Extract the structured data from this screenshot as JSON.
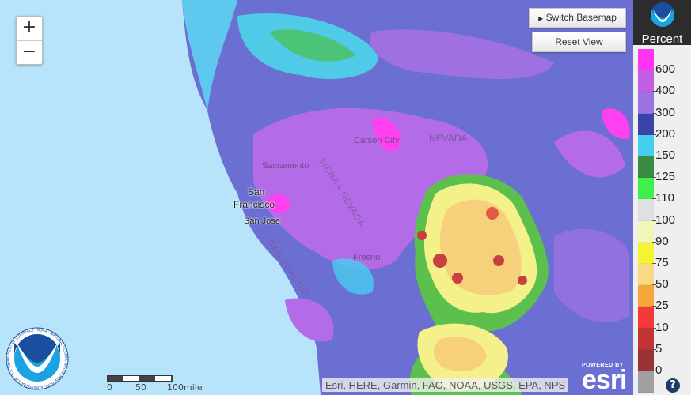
{
  "map": {
    "zoom_in": "+",
    "zoom_out": "−",
    "switch_basemap": "Switch Basemap",
    "reset_view": "Reset View",
    "labels": {
      "carson_city": "Carson City",
      "nevada": "NEVADA",
      "sacramento": "Sacramento",
      "san_francisco_1": "San",
      "san_francisco_2": "Francisco",
      "san_jose": "San Jose",
      "fresno": "Fresno",
      "sierra_nevada": "SIERRA NEVADA",
      "san_joaquin": "SAN JOAQUIN"
    },
    "scale": {
      "ticks": [
        "0",
        "50",
        "100mile"
      ]
    },
    "attribution": "Esri, HERE, Garmin, FAO, NOAA, USGS, EPA, NPS",
    "powered_by": "POWERED BY",
    "esri": "esri",
    "noaa_logo_text": "NOAA · NATIONAL OCEANIC AND ATMOSPHERIC ADMINISTRATION · U.S. DEPARTMENT OF COMMERCE"
  },
  "legend": {
    "title": "Percent",
    "noaa_badge": "NOAA",
    "help": "?",
    "bands": [
      {
        "color": "#ff33f2"
      },
      {
        "color": "#c25fe3"
      },
      {
        "color": "#9b72e3"
      },
      {
        "color": "#3a44a6"
      },
      {
        "color": "#47cdf0"
      },
      {
        "color": "#3a8a42"
      },
      {
        "color": "#3ff048"
      },
      {
        "color": "#e0e0e0"
      },
      {
        "color": "#f1f5b5"
      },
      {
        "color": "#f4f430"
      },
      {
        "color": "#f8d985"
      },
      {
        "color": "#f5a63a"
      },
      {
        "color": "#f53838"
      },
      {
        "color": "#c03434"
      },
      {
        "color": "#993333"
      },
      {
        "color": "#a0a0a0"
      }
    ],
    "ticks": [
      "600",
      "400",
      "300",
      "200",
      "150",
      "125",
      "110",
      "100",
      "90",
      "75",
      "50",
      "25",
      "10",
      "5",
      "0"
    ]
  }
}
